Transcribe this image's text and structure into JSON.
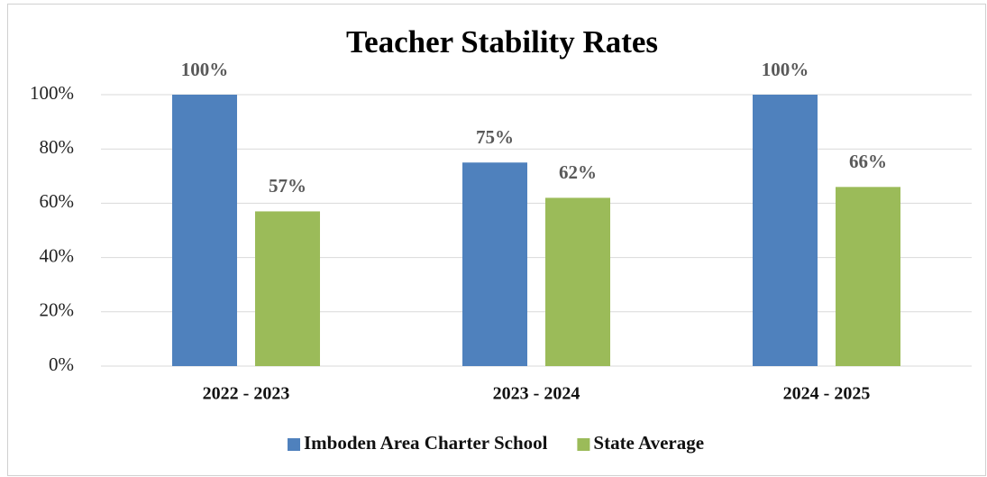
{
  "chart_data": {
    "type": "bar",
    "title": "Teacher Stability Rates",
    "categories": [
      "2022 - 2023",
      "2023 - 2024",
      "2024 - 2025"
    ],
    "series": [
      {
        "name": "Imboden Area Charter School",
        "color": "#4f81bd",
        "values": [
          100,
          75,
          100
        ],
        "value_labels": [
          "100%",
          "75%",
          "100%"
        ]
      },
      {
        "name": "State Average",
        "color": "#9bbb59",
        "values": [
          57,
          62,
          66
        ],
        "value_labels": [
          "57%",
          "62%",
          "66%"
        ]
      }
    ],
    "ylim": [
      0,
      100
    ],
    "yticks": [
      {
        "value": 0,
        "label": "0%"
      },
      {
        "value": 20,
        "label": "20%"
      },
      {
        "value": 40,
        "label": "40%"
      },
      {
        "value": 60,
        "label": "60%"
      },
      {
        "value": 80,
        "label": "80%"
      },
      {
        "value": 100,
        "label": "100%"
      }
    ],
    "grid": true,
    "legend": "bottom"
  }
}
